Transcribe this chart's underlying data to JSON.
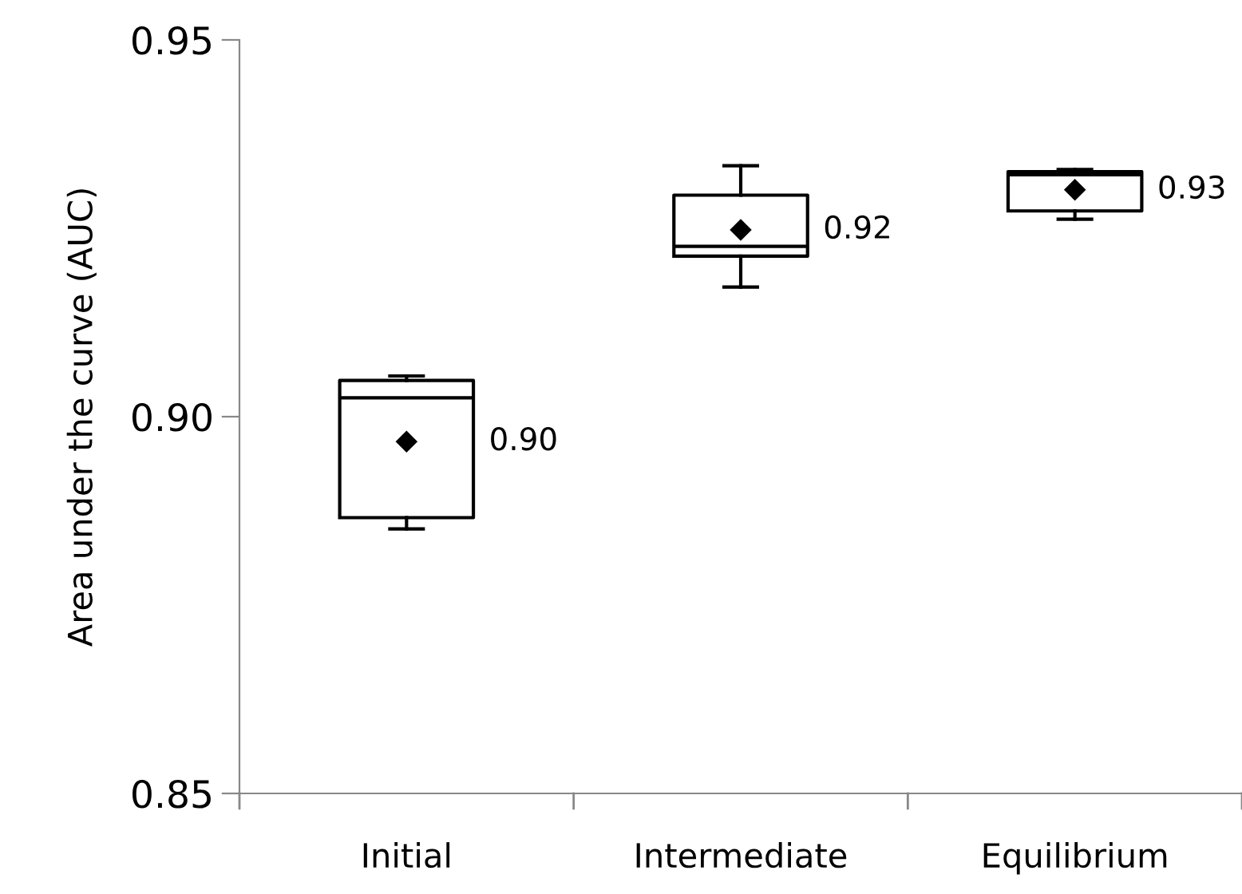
{
  "chart_data": {
    "type": "box",
    "ylabel": "Area under the curve (AUC)",
    "categories": [
      "Initial",
      "Intermediate",
      "Equilibrium"
    ],
    "boxes": [
      {
        "low": 0.8851,
        "q1": 0.8866,
        "median": 0.9025,
        "q3": 0.9048,
        "high": 0.9054,
        "mean": 0.8967
      },
      {
        "low": 0.9172,
        "q1": 0.9213,
        "median": 0.9226,
        "q3": 0.9294,
        "high": 0.9333,
        "mean": 0.9248
      },
      {
        "low": 0.9262,
        "q1": 0.9273,
        "median": 0.9321,
        "q3": 0.9325,
        "high": 0.9328,
        "mean": 0.9301
      }
    ],
    "ylim": [
      0.85,
      0.95
    ],
    "yticks": [
      {
        "value": 0.85,
        "label": "0.85"
      },
      {
        "value": 0.9,
        "label": "0.90"
      },
      {
        "value": 0.95,
        "label": "0.95"
      }
    ],
    "value_labels": [
      "0.90",
      "0.92",
      "0.93"
    ],
    "marker": "diamond",
    "grid": false,
    "legend": false
  }
}
